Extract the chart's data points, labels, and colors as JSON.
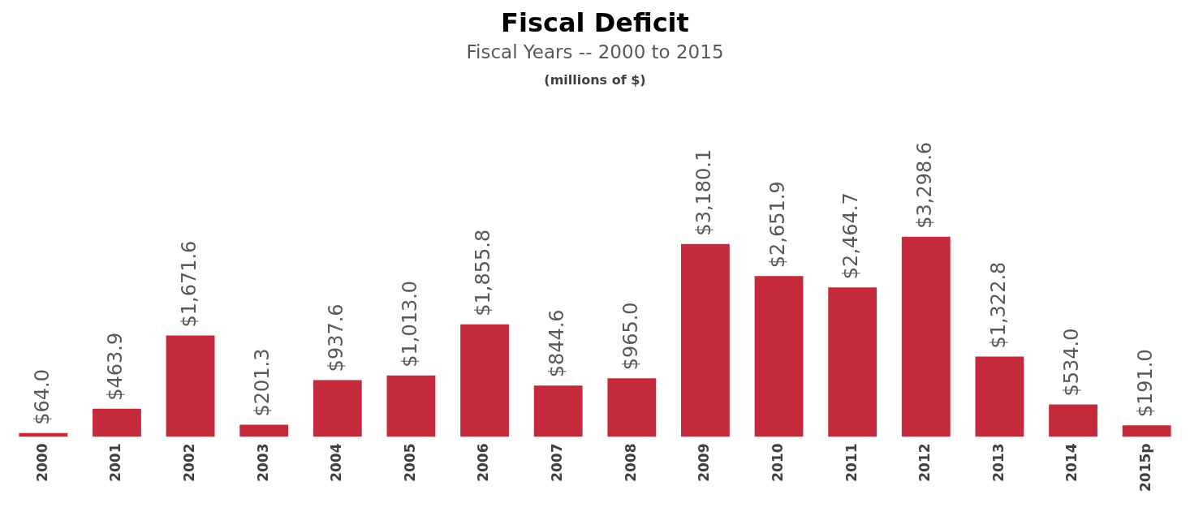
{
  "chart_data": {
    "type": "bar",
    "title": "Fiscal Deficit",
    "subtitle": "Fiscal Years -- 2000 to 2015",
    "annotations": [
      "(millions of $)"
    ],
    "categories": [
      "2000",
      "2001",
      "2002",
      "2003",
      "2004",
      "2005",
      "2006",
      "2007",
      "2008",
      "2009",
      "2010",
      "2011",
      "2012",
      "2013",
      "2014",
      "2015p"
    ],
    "values": [
      64.0,
      463.9,
      1671.6,
      201.3,
      937.6,
      1013.0,
      1855.8,
      844.6,
      965.0,
      3180.1,
      2651.9,
      2464.7,
      3298.6,
      1322.8,
      534.0,
      191.0
    ],
    "value_labels": [
      "$64.0",
      "$463.9",
      "$1,671.6",
      "$201.3",
      "$937.6",
      "$1,013.0",
      "$1,855.8",
      "$844.6",
      "$965.0",
      "$3,180.1",
      "$2,651.9",
      "$2,464.7",
      "$3,298.6",
      "$1,322.8",
      "$534.0",
      "$191.0"
    ],
    "color": "#c52a3a",
    "grid": false,
    "legend": false
  }
}
